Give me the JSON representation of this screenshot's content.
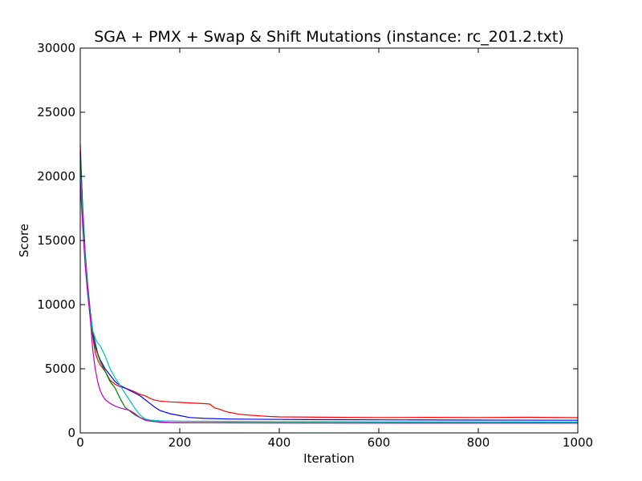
{
  "chart_data": {
    "type": "line",
    "title": "SGA + PMX + Swap & Shift Mutations (instance: rc_201.2.txt)",
    "xlabel": "Iteration",
    "ylabel": "Score",
    "xlim": [
      0,
      1000
    ],
    "ylim": [
      0,
      30000
    ],
    "xticks": [
      0,
      200,
      400,
      600,
      800,
      1000
    ],
    "yticks": [
      0,
      5000,
      10000,
      15000,
      20000,
      25000,
      30000
    ],
    "x_tick_labels": [
      "0",
      "200",
      "400",
      "600",
      "800",
      "1000"
    ],
    "y_tick_labels": [
      "0",
      "5000",
      "10000",
      "15000",
      "20000",
      "25000",
      "30000"
    ],
    "grid": false,
    "legend": "none",
    "series": [
      {
        "color": "#ff0000",
        "points": [
          [
            0,
            22500
          ],
          [
            5,
            17000
          ],
          [
            10,
            13500
          ],
          [
            15,
            11000
          ],
          [
            20,
            9000
          ],
          [
            25,
            7500
          ],
          [
            30,
            6300
          ],
          [
            35,
            5700
          ],
          [
            40,
            5300
          ],
          [
            50,
            4800
          ],
          [
            60,
            4100
          ],
          [
            70,
            3800
          ],
          [
            80,
            3600
          ],
          [
            90,
            3500
          ],
          [
            100,
            3350
          ],
          [
            110,
            3200
          ],
          [
            120,
            3000
          ],
          [
            130,
            2900
          ],
          [
            140,
            2700
          ],
          [
            150,
            2550
          ],
          [
            160,
            2480
          ],
          [
            180,
            2420
          ],
          [
            200,
            2380
          ],
          [
            220,
            2340
          ],
          [
            250,
            2280
          ],
          [
            260,
            2250
          ],
          [
            265,
            2100
          ],
          [
            270,
            1950
          ],
          [
            280,
            1850
          ],
          [
            290,
            1700
          ],
          [
            300,
            1600
          ],
          [
            320,
            1450
          ],
          [
            340,
            1380
          ],
          [
            360,
            1330
          ],
          [
            380,
            1280
          ],
          [
            400,
            1250
          ],
          [
            500,
            1220
          ],
          [
            600,
            1200
          ],
          [
            700,
            1210
          ],
          [
            800,
            1200
          ],
          [
            900,
            1220
          ],
          [
            1000,
            1190
          ]
        ]
      },
      {
        "color": "#0000ff",
        "points": [
          [
            0,
            22000
          ],
          [
            5,
            17500
          ],
          [
            10,
            14000
          ],
          [
            15,
            11500
          ],
          [
            20,
            9500
          ],
          [
            25,
            8000
          ],
          [
            30,
            7000
          ],
          [
            35,
            6200
          ],
          [
            40,
            5700
          ],
          [
            50,
            5000
          ],
          [
            60,
            4500
          ],
          [
            70,
            4000
          ],
          [
            80,
            3700
          ],
          [
            90,
            3500
          ],
          [
            100,
            3300
          ],
          [
            110,
            3100
          ],
          [
            120,
            2900
          ],
          [
            130,
            2600
          ],
          [
            140,
            2300
          ],
          [
            150,
            2000
          ],
          [
            160,
            1750
          ],
          [
            180,
            1500
          ],
          [
            200,
            1350
          ],
          [
            220,
            1200
          ],
          [
            250,
            1130
          ],
          [
            300,
            1080
          ],
          [
            400,
            1050
          ],
          [
            500,
            1030
          ],
          [
            600,
            1020
          ],
          [
            800,
            1000
          ],
          [
            1000,
            990
          ]
        ]
      },
      {
        "color": "#008000",
        "points": [
          [
            0,
            21500
          ],
          [
            5,
            17000
          ],
          [
            10,
            13800
          ],
          [
            15,
            11200
          ],
          [
            20,
            9300
          ],
          [
            25,
            7700
          ],
          [
            30,
            6700
          ],
          [
            40,
            5600
          ],
          [
            50,
            4800
          ],
          [
            60,
            4000
          ],
          [
            70,
            3500
          ],
          [
            80,
            2700
          ],
          [
            90,
            2000
          ],
          [
            100,
            1700
          ],
          [
            110,
            1400
          ],
          [
            120,
            1200
          ],
          [
            130,
            1050
          ],
          [
            140,
            950
          ],
          [
            150,
            880
          ],
          [
            160,
            820
          ],
          [
            180,
            800
          ],
          [
            200,
            790
          ],
          [
            300,
            790
          ],
          [
            500,
            780
          ],
          [
            700,
            780
          ],
          [
            1000,
            780
          ]
        ]
      },
      {
        "color": "#00bfbf",
        "points": [
          [
            0,
            20500
          ],
          [
            5,
            16500
          ],
          [
            10,
            13500
          ],
          [
            15,
            11000
          ],
          [
            20,
            9200
          ],
          [
            25,
            8000
          ],
          [
            30,
            7400
          ],
          [
            35,
            7000
          ],
          [
            40,
            6800
          ],
          [
            50,
            6000
          ],
          [
            60,
            5000
          ],
          [
            70,
            4300
          ],
          [
            80,
            3700
          ],
          [
            90,
            3100
          ],
          [
            100,
            2500
          ],
          [
            110,
            1900
          ],
          [
            120,
            1400
          ],
          [
            130,
            1100
          ],
          [
            140,
            1000
          ],
          [
            160,
            950
          ],
          [
            200,
            920
          ],
          [
            300,
            900
          ],
          [
            400,
            890
          ],
          [
            500,
            880
          ],
          [
            600,
            870
          ],
          [
            800,
            860
          ],
          [
            1000,
            850
          ]
        ]
      },
      {
        "color": "#bf00bf",
        "points": [
          [
            0,
            19500
          ],
          [
            5,
            16000
          ],
          [
            10,
            13000
          ],
          [
            15,
            10800
          ],
          [
            20,
            9000
          ],
          [
            25,
            6500
          ],
          [
            30,
            5000
          ],
          [
            35,
            4000
          ],
          [
            40,
            3300
          ],
          [
            45,
            2900
          ],
          [
            50,
            2600
          ],
          [
            60,
            2300
          ],
          [
            70,
            2100
          ],
          [
            80,
            1950
          ],
          [
            90,
            1850
          ],
          [
            100,
            1750
          ],
          [
            110,
            1500
          ],
          [
            120,
            1200
          ],
          [
            130,
            1000
          ],
          [
            140,
            920
          ],
          [
            150,
            880
          ],
          [
            160,
            860
          ],
          [
            180,
            820
          ],
          [
            200,
            800
          ],
          [
            300,
            780
          ],
          [
            500,
            770
          ],
          [
            1000,
            760
          ]
        ]
      }
    ]
  }
}
